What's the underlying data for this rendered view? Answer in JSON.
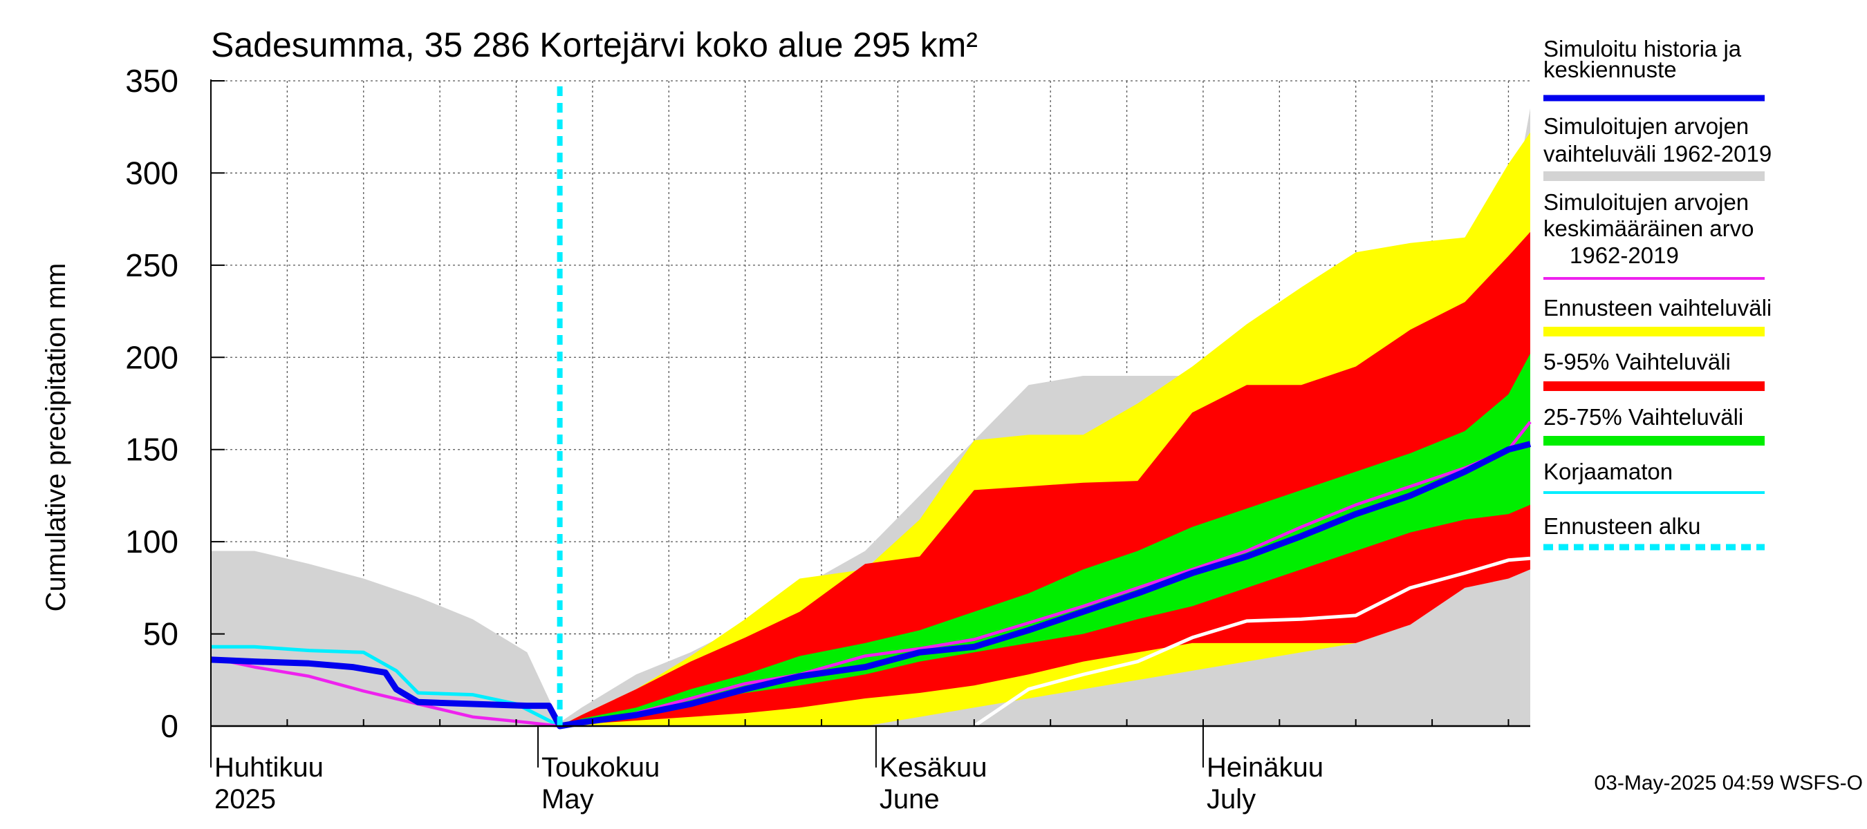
{
  "chart_data": {
    "type": "area",
    "title": "Sadesumma, 35 286 Kortejärvi koko alue 295 km²",
    "ylabel": "Cumulative precipitation   mm",
    "xlabel": "",
    "ylim": [
      0,
      350
    ],
    "yticks": [
      0,
      50,
      100,
      150,
      200,
      250,
      300,
      350
    ],
    "xlim": [
      "2025-04-01",
      "2025-07-31"
    ],
    "x_tick_marks": "weekly",
    "grid": true,
    "legend_placement": "right",
    "forecast_start": "2025-05-03",
    "month_labels": [
      {
        "date": "2025-04-01",
        "fi": "Huhtikuu",
        "en": "2025"
      },
      {
        "date": "2025-05-01",
        "fi": "Toukokuu",
        "en": "May"
      },
      {
        "date": "2025-06-01",
        "fi": "Kesäkuu",
        "en": "June"
      },
      {
        "date": "2025-07-01",
        "fi": "Heinäkuu",
        "en": "July"
      }
    ],
    "footer": "03-May-2025 04:59 WSFS-O",
    "legend": [
      {
        "key": "history",
        "label_lines": [
          "Simuloitu historia ja",
          "keskiennuste"
        ],
        "color": "#0000ee",
        "style": "line"
      },
      {
        "key": "range_hist",
        "label_lines": [
          "Simuloitujen arvojen",
          "vaihteluväli 1962-2019"
        ],
        "color": "#d3d3d3",
        "style": "band"
      },
      {
        "key": "mean_hist",
        "label_lines": [
          "Simuloitujen arvojen",
          "keskimääräinen arvo",
          "1962-2019"
        ],
        "color": "#ee22ee",
        "style": "line"
      },
      {
        "key": "range_fc",
        "label_lines": [
          "Ennusteen vaihteluväli"
        ],
        "color": "#ffff00",
        "style": "band"
      },
      {
        "key": "p5_95",
        "label_lines": [
          "5-95% Vaihteluväli"
        ],
        "color": "#ff0000",
        "style": "band"
      },
      {
        "key": "p25_75",
        "label_lines": [
          "25-75% Vaihteluväli"
        ],
        "color": "#00ee00",
        "style": "band"
      },
      {
        "key": "uncorrected",
        "label_lines": [
          "Korjaamaton"
        ],
        "color": "#00eeff",
        "style": "line"
      },
      {
        "key": "fc_start",
        "label_lines": [
          "Ennusteen alku"
        ],
        "color": "#00eeff",
        "style": "dashed"
      }
    ],
    "bands": {
      "range_hist": {
        "x": [
          "2025-04-01",
          "2025-04-05",
          "2025-04-10",
          "2025-04-15",
          "2025-04-20",
          "2025-04-25",
          "2025-04-30",
          "2025-05-03",
          "2025-05-05",
          "2025-05-10",
          "2025-05-15",
          "2025-05-20",
          "2025-05-25",
          "2025-05-31",
          "2025-06-05",
          "2025-06-10",
          "2025-06-15",
          "2025-06-20",
          "2025-06-25",
          "2025-06-30",
          "2025-07-05",
          "2025-07-10",
          "2025-07-15",
          "2025-07-20",
          "2025-07-25",
          "2025-07-29",
          "2025-07-31"
        ],
        "lower": [
          0,
          0,
          0,
          0,
          0,
          0,
          0,
          0,
          0,
          0,
          0,
          0,
          0,
          0,
          0,
          0,
          0,
          0,
          0,
          0,
          0,
          0,
          0,
          0,
          0,
          0,
          0
        ],
        "upper": [
          95,
          95,
          88,
          80,
          70,
          58,
          40,
          2,
          10,
          28,
          40,
          55,
          75,
          95,
          125,
          155,
          185,
          190,
          190,
          190,
          200,
          222,
          232,
          258,
          265,
          270,
          335
        ]
      },
      "range_fc": {
        "x": [
          "2025-05-03",
          "2025-05-05",
          "2025-05-10",
          "2025-05-15",
          "2025-05-20",
          "2025-05-25",
          "2025-05-31",
          "2025-06-05",
          "2025-06-10",
          "2025-06-15",
          "2025-06-20",
          "2025-06-25",
          "2025-06-30",
          "2025-07-05",
          "2025-07-10",
          "2025-07-15",
          "2025-07-20",
          "2025-07-25",
          "2025-07-29",
          "2025-07-31"
        ],
        "lower": [
          0,
          0,
          0,
          0,
          0,
          0,
          0,
          5,
          10,
          15,
          20,
          25,
          30,
          35,
          40,
          45,
          65,
          80,
          85,
          90
        ],
        "upper": [
          0,
          6,
          20,
          38,
          58,
          80,
          85,
          112,
          155,
          158,
          158,
          175,
          195,
          218,
          238,
          257,
          262,
          265,
          305,
          322
        ]
      },
      "p5_95": {
        "x": [
          "2025-05-03",
          "2025-05-05",
          "2025-05-10",
          "2025-05-15",
          "2025-05-20",
          "2025-05-25",
          "2025-05-31",
          "2025-06-05",
          "2025-06-10",
          "2025-06-15",
          "2025-06-20",
          "2025-06-25",
          "2025-06-30",
          "2025-07-05",
          "2025-07-10",
          "2025-07-15",
          "2025-07-20",
          "2025-07-25",
          "2025-07-29",
          "2025-07-31"
        ],
        "lower": [
          0,
          1,
          3,
          5,
          7,
          10,
          15,
          18,
          22,
          28,
          35,
          40,
          45,
          45,
          45,
          45,
          55,
          75,
          80,
          85
        ],
        "upper": [
          0,
          6,
          20,
          35,
          48,
          62,
          88,
          92,
          128,
          130,
          132,
          133,
          170,
          185,
          185,
          195,
          215,
          230,
          255,
          268
        ]
      },
      "p25_75": {
        "x": [
          "2025-05-03",
          "2025-05-05",
          "2025-05-10",
          "2025-05-15",
          "2025-05-20",
          "2025-05-25",
          "2025-05-31",
          "2025-06-05",
          "2025-06-10",
          "2025-06-15",
          "2025-06-20",
          "2025-06-25",
          "2025-06-30",
          "2025-07-05",
          "2025-07-10",
          "2025-07-15",
          "2025-07-20",
          "2025-07-25",
          "2025-07-29",
          "2025-07-31"
        ],
        "lower": [
          0,
          2,
          5,
          12,
          18,
          22,
          28,
          35,
          40,
          45,
          50,
          58,
          65,
          75,
          85,
          95,
          105,
          112,
          115,
          120
        ],
        "upper": [
          0,
          4,
          10,
          20,
          28,
          38,
          45,
          52,
          62,
          72,
          85,
          95,
          108,
          118,
          128,
          138,
          148,
          160,
          180,
          202
        ]
      }
    },
    "series": [
      {
        "key": "history",
        "name": "Simuloitu historia ja keskiennuste",
        "x": [
          "2025-04-01",
          "2025-04-05",
          "2025-04-10",
          "2025-04-14",
          "2025-04-17",
          "2025-04-18",
          "2025-04-20",
          "2025-04-25",
          "2025-04-30",
          "2025-05-02",
          "2025-05-03",
          "2025-05-05",
          "2025-05-10",
          "2025-05-15",
          "2025-05-20",
          "2025-05-25",
          "2025-05-31",
          "2025-06-05",
          "2025-06-10",
          "2025-06-15",
          "2025-06-20",
          "2025-06-25",
          "2025-06-30",
          "2025-07-05",
          "2025-07-10",
          "2025-07-15",
          "2025-07-20",
          "2025-07-25",
          "2025-07-29",
          "2025-07-31"
        ],
        "y": [
          36,
          35,
          34,
          32,
          29,
          20,
          13,
          12,
          11,
          11,
          0,
          2,
          6,
          12,
          20,
          27,
          32,
          40,
          43,
          52,
          62,
          72,
          83,
          92,
          103,
          115,
          125,
          138,
          150,
          153
        ]
      },
      {
        "key": "mean_hist",
        "name": "Simuloitujen arvojen keskimääräinen arvo 1962-2019",
        "x": [
          "2025-04-01",
          "2025-04-05",
          "2025-04-10",
          "2025-04-15",
          "2025-04-20",
          "2025-04-25",
          "2025-04-30",
          "2025-05-03",
          "2025-05-05",
          "2025-05-10",
          "2025-05-15",
          "2025-05-20",
          "2025-05-25",
          "2025-05-31",
          "2025-06-05",
          "2025-06-10",
          "2025-06-15",
          "2025-06-20",
          "2025-06-25",
          "2025-06-30",
          "2025-07-05",
          "2025-07-10",
          "2025-07-15",
          "2025-07-20",
          "2025-07-25",
          "2025-07-29",
          "2025-07-31"
        ],
        "y": [
          37,
          32,
          27,
          19,
          12,
          5,
          2,
          0,
          2,
          7,
          15,
          23,
          28,
          38,
          42,
          47,
          56,
          65,
          75,
          85,
          95,
          108,
          120,
          130,
          140,
          150,
          165
        ]
      },
      {
        "key": "uncorrected",
        "name": "Korjaamaton",
        "x": [
          "2025-04-01",
          "2025-04-05",
          "2025-04-10",
          "2025-04-15",
          "2025-04-18",
          "2025-04-20",
          "2025-04-25",
          "2025-04-29",
          "2025-05-03"
        ],
        "y": [
          43,
          43,
          41,
          40,
          30,
          18,
          17,
          12,
          0
        ]
      },
      {
        "key": "white_line",
        "name": "",
        "color": "#ffffff",
        "x": [
          "2025-06-10",
          "2025-06-15",
          "2025-06-20",
          "2025-06-25",
          "2025-06-30",
          "2025-07-05",
          "2025-07-10",
          "2025-07-15",
          "2025-07-20",
          "2025-07-25",
          "2025-07-29",
          "2025-07-31"
        ],
        "y": [
          0,
          20,
          28,
          35,
          48,
          57,
          58,
          60,
          75,
          83,
          90,
          91
        ]
      }
    ]
  }
}
